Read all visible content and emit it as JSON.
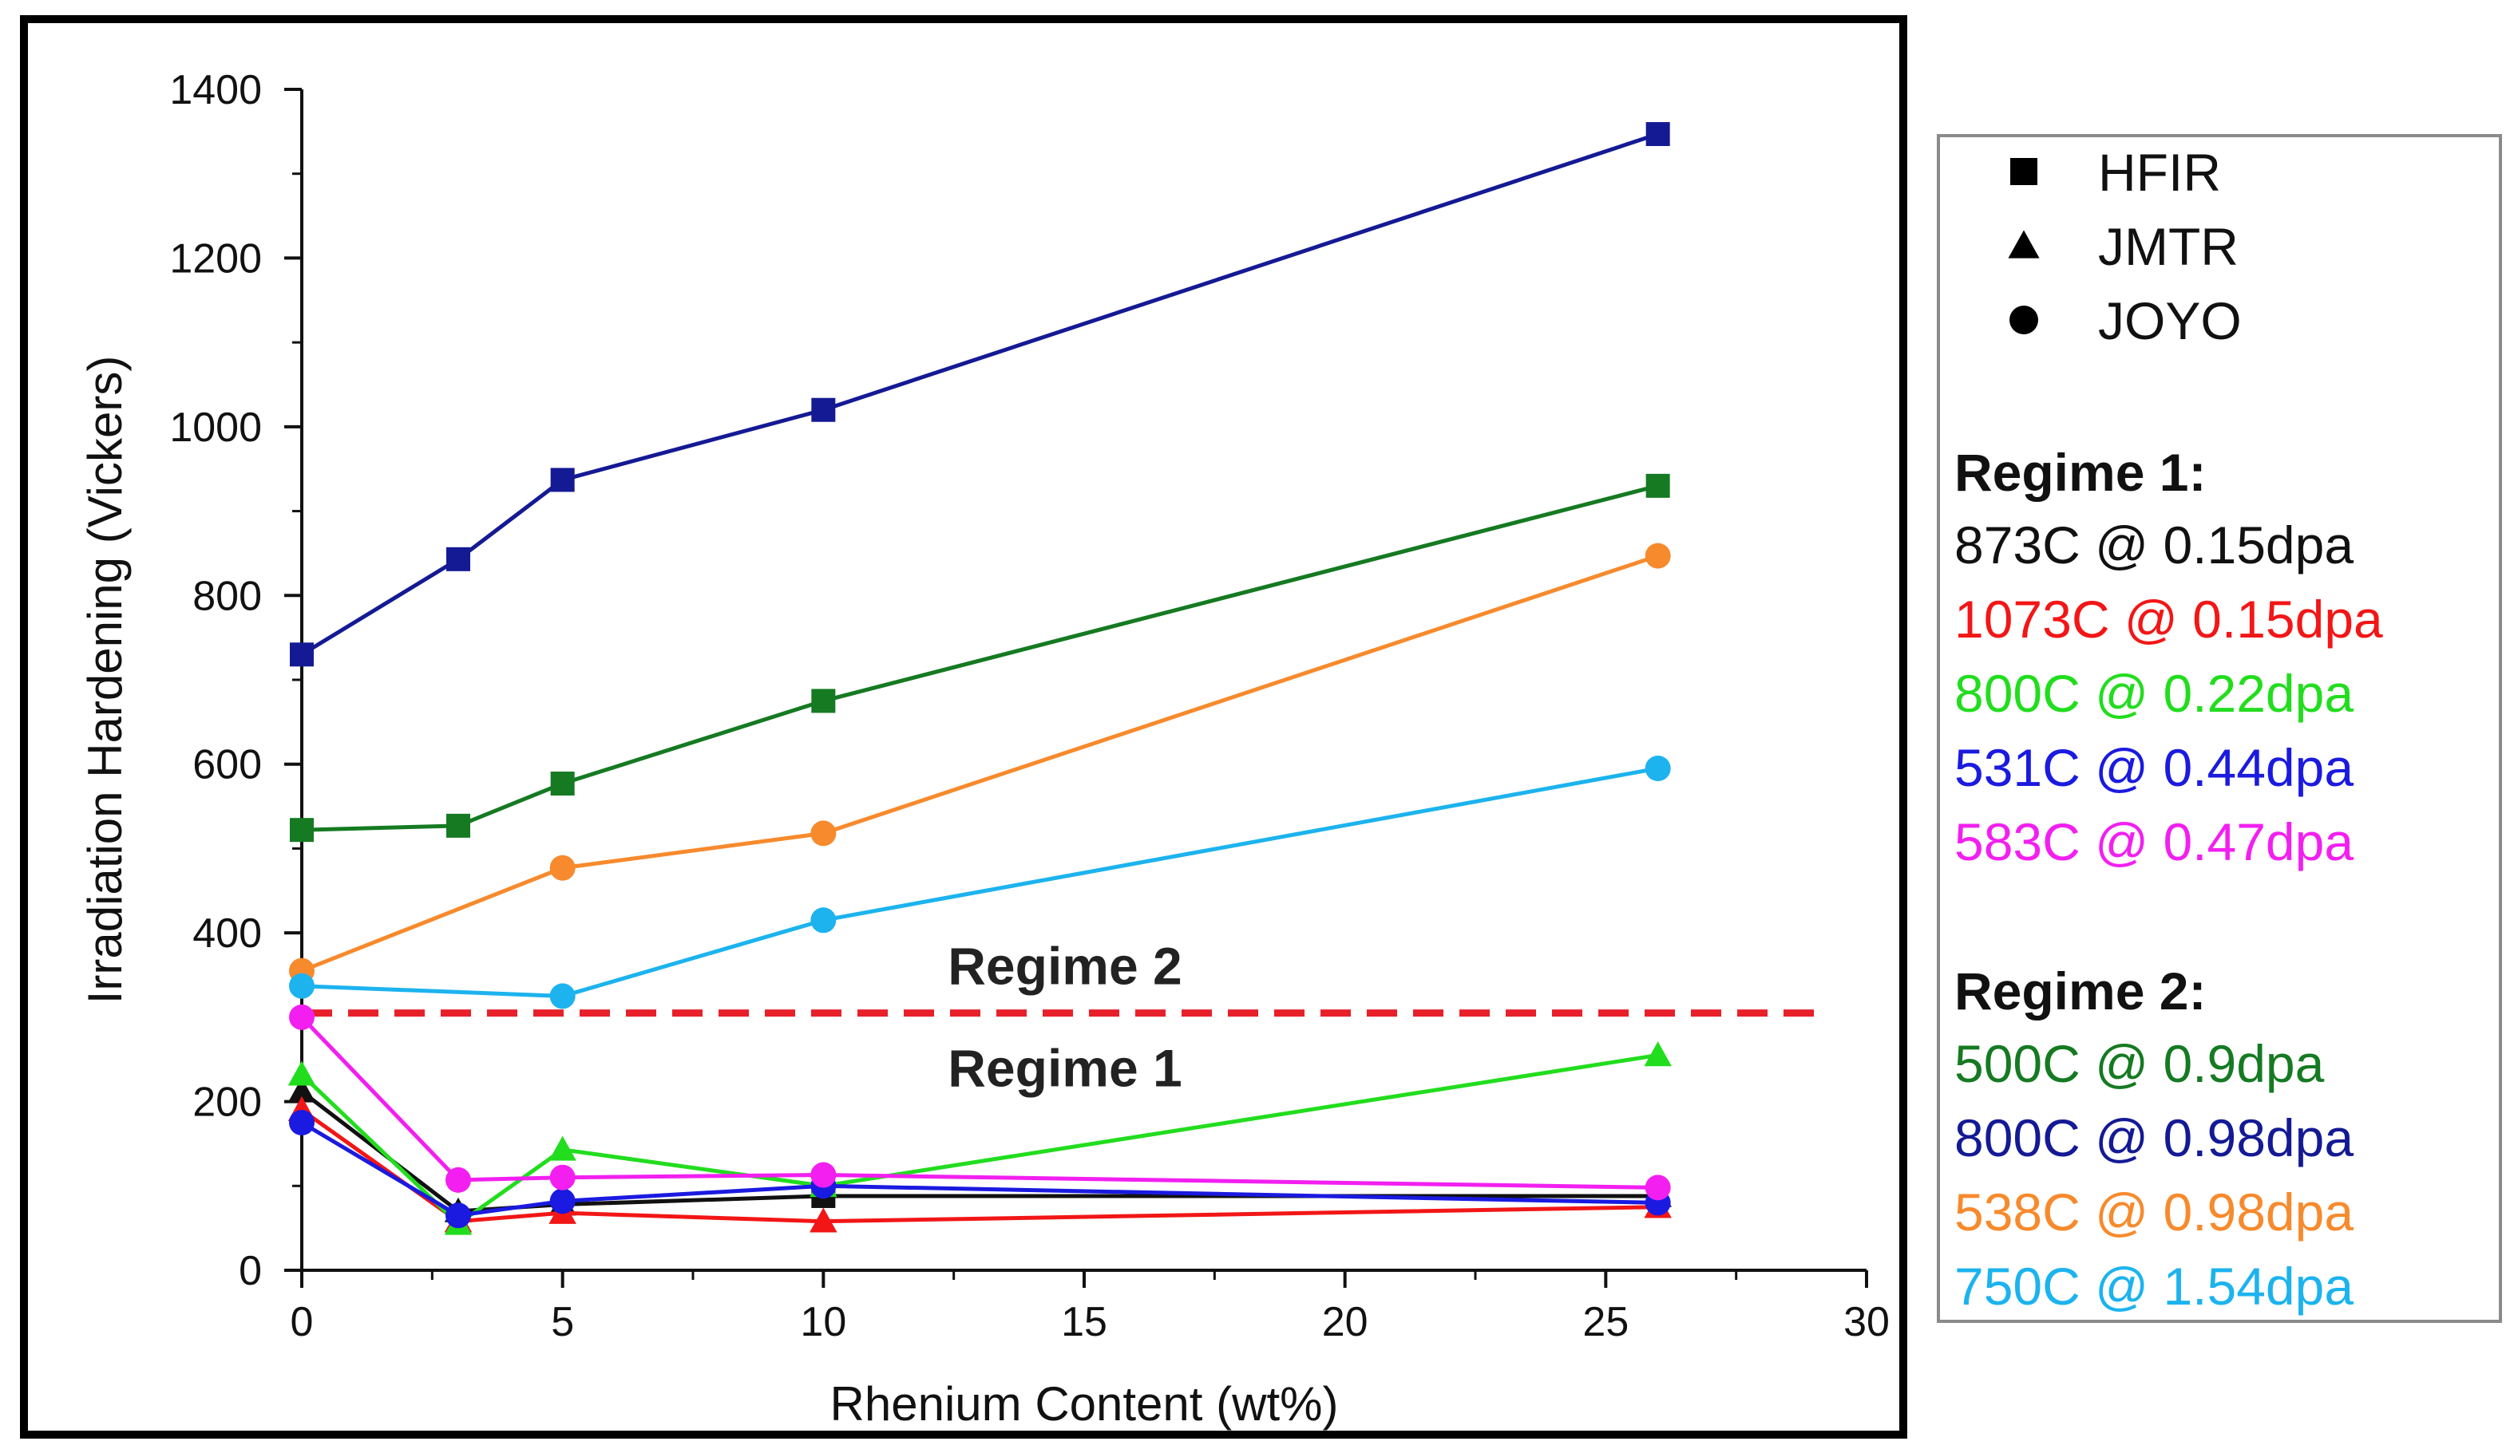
{
  "chart_data": {
    "type": "line",
    "title": "",
    "xlabel": "Rhenium Content (wt%)",
    "ylabel": "Irradiation Hardening (Vickers)",
    "xlim": [
      0,
      30
    ],
    "ylim": [
      0,
      1400
    ],
    "xticks": [
      "0",
      "5",
      "10",
      "15",
      "20",
      "25",
      "30"
    ],
    "yticks": [
      "0",
      "200",
      "400",
      "600",
      "800",
      "1000",
      "1200",
      "1400"
    ],
    "threshold": {
      "y": 305,
      "color": "#e8202a",
      "label_above": "Regime 2",
      "label_below": "Regime 1"
    },
    "marker_legend": [
      {
        "marker": "square",
        "label": "HFIR"
      },
      {
        "marker": "triangle",
        "label": "JMTR"
      },
      {
        "marker": "circle",
        "label": "JOYO"
      }
    ],
    "regime1_heading": "Regime 1:",
    "regime2_heading": "Regime 2:",
    "series": [
      {
        "name": "873C @ 0.15dpa",
        "regime": 1,
        "color": "#111111",
        "x": [
          0,
          3,
          5,
          10,
          26
        ],
        "y": [
          212,
          70,
          78,
          88,
          88
        ],
        "markers": [
          "triangle",
          "triangle",
          "triangle",
          "square",
          "triangle"
        ]
      },
      {
        "name": "1073C @ 0.15dpa",
        "regime": 1,
        "color": "#f21616",
        "x": [
          0,
          3,
          5,
          10,
          26
        ],
        "y": [
          190,
          58,
          68,
          58,
          75
        ],
        "markers": [
          "triangle",
          "triangle",
          "triangle",
          "triangle",
          "triangle"
        ]
      },
      {
        "name": "800C @ 0.22dpa",
        "regime": 1,
        "color": "#22dd1e",
        "x": [
          0,
          3,
          5,
          10,
          26
        ],
        "y": [
          232,
          55,
          143,
          100,
          255
        ],
        "markers": [
          "triangle",
          "triangle",
          "triangle",
          "triangle",
          "triangle"
        ]
      },
      {
        "name": "531C @ 0.44dpa",
        "regime": 1,
        "color": "#1a1ae0",
        "x": [
          0,
          3,
          5,
          10,
          26
        ],
        "y": [
          175,
          65,
          82,
          100,
          80
        ],
        "markers": [
          "circle",
          "circle",
          "circle",
          "circle",
          "circle"
        ]
      },
      {
        "name": "583C @ 0.47dpa",
        "regime": 1,
        "color": "#f21ff0",
        "x": [
          0,
          3,
          5,
          10,
          26
        ],
        "y": [
          300,
          107,
          110,
          113,
          98
        ],
        "markers": [
          "circle",
          "circle",
          "circle",
          "circle",
          "circle"
        ]
      },
      {
        "name": "500C @ 0.9dpa",
        "regime": 2,
        "color": "#157a22",
        "x": [
          0,
          3,
          5,
          10,
          26
        ],
        "y": [
          522,
          527,
          577,
          675,
          930
        ],
        "markers": [
          "square",
          "square",
          "square",
          "square",
          "square"
        ]
      },
      {
        "name": "800C @ 0.98dpa",
        "regime": 2,
        "color": "#141a94",
        "x": [
          0,
          3,
          5,
          10,
          26
        ],
        "y": [
          730,
          843,
          937,
          1020,
          1347
        ],
        "markers": [
          "square",
          "square",
          "square",
          "square",
          "square"
        ]
      },
      {
        "name": "538C @ 0.98dpa",
        "regime": 2,
        "color": "#f78a2c",
        "x": [
          0,
          5,
          10,
          26
        ],
        "y": [
          355,
          477,
          518,
          847
        ],
        "markers": [
          "circle",
          "circle",
          "circle",
          "circle"
        ]
      },
      {
        "name": "750C @ 1.54dpa",
        "regime": 2,
        "color": "#1cb3ee",
        "x": [
          0,
          5,
          10,
          26
        ],
        "y": [
          337,
          325,
          415,
          595
        ],
        "markers": [
          "circle",
          "circle",
          "circle",
          "circle"
        ]
      }
    ]
  }
}
